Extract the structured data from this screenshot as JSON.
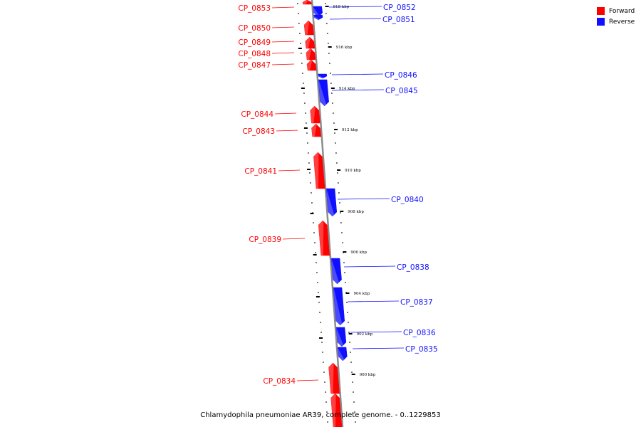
{
  "caption": "Chlamydophila pneumoniae AR39, complete genome. - 0..1229853",
  "legend": [
    {
      "label": "Forward",
      "color": "#ff0000"
    },
    {
      "label": "Reverse",
      "color": "#1010ff"
    }
  ],
  "colors": {
    "forward": "#ff0000",
    "reverse": "#1010ff",
    "backbone": "#8c8c8c"
  },
  "ticks": [
    {
      "label": "918 kbp"
    },
    {
      "label": "916 kbp"
    },
    {
      "label": "914 kbp"
    },
    {
      "label": "912 kbp"
    },
    {
      "label": "910 kbp"
    },
    {
      "label": "908 kbp"
    },
    {
      "label": "906 kbp"
    },
    {
      "label": "904 kbp"
    },
    {
      "label": "902 kbp"
    },
    {
      "label": "900 kbp"
    }
  ],
  "genes": [
    {
      "name": "CP_0853",
      "strand": "forward"
    },
    {
      "name": "CP_0852",
      "strand": "reverse"
    },
    {
      "name": "CP_0851",
      "strand": "reverse"
    },
    {
      "name": "CP_0850",
      "strand": "forward"
    },
    {
      "name": "CP_0849",
      "strand": "forward"
    },
    {
      "name": "CP_0848",
      "strand": "forward"
    },
    {
      "name": "CP_0847",
      "strand": "forward"
    },
    {
      "name": "CP_0846",
      "strand": "reverse"
    },
    {
      "name": "CP_0845",
      "strand": "reverse"
    },
    {
      "name": "CP_0844",
      "strand": "forward"
    },
    {
      "name": "CP_0843",
      "strand": "forward"
    },
    {
      "name": "CP_0841",
      "strand": "forward"
    },
    {
      "name": "CP_0840",
      "strand": "reverse"
    },
    {
      "name": "CP_0839",
      "strand": "forward"
    },
    {
      "name": "CP_0838",
      "strand": "reverse"
    },
    {
      "name": "CP_0837",
      "strand": "reverse"
    },
    {
      "name": "CP_0836",
      "strand": "reverse"
    },
    {
      "name": "CP_0835",
      "strand": "reverse"
    },
    {
      "name": "CP_0834",
      "strand": "forward"
    },
    {
      "name": "",
      "strand": "forward"
    }
  ]
}
